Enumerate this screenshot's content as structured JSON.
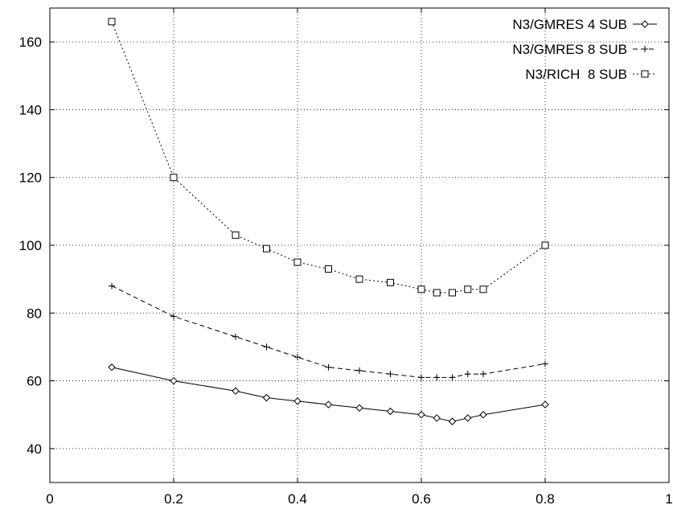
{
  "chart_data": {
    "type": "line",
    "title": "",
    "xlabel": "",
    "ylabel": "",
    "xlim": [
      0,
      1
    ],
    "ylim": [
      30,
      170
    ],
    "grid": true,
    "legend_position": "top-right",
    "x_ticks": [
      {
        "value": 0,
        "label": "0"
      },
      {
        "value": 0.2,
        "label": "0.2"
      },
      {
        "value": 0.4,
        "label": "0.4"
      },
      {
        "value": 0.6,
        "label": "0.6"
      },
      {
        "value": 0.8,
        "label": "0.8"
      },
      {
        "value": 1,
        "label": "1"
      }
    ],
    "y_ticks": [
      {
        "value": 40,
        "label": "40"
      },
      {
        "value": 60,
        "label": "60"
      },
      {
        "value": 80,
        "label": "80"
      },
      {
        "value": 100,
        "label": "100"
      },
      {
        "value": 120,
        "label": "120"
      },
      {
        "value": 140,
        "label": "140"
      },
      {
        "value": 160,
        "label": "160"
      }
    ],
    "series": [
      {
        "name": "N3/GMRES 4 SUB",
        "marker": "diamond",
        "line_style": "solid",
        "color": "#000000",
        "x": [
          0.1,
          0.2,
          0.3,
          0.35,
          0.4,
          0.45,
          0.5,
          0.55,
          0.6,
          0.625,
          0.65,
          0.675,
          0.7,
          0.8
        ],
        "y": [
          64,
          60,
          57,
          55,
          54,
          53,
          52,
          51,
          50,
          49,
          48,
          49,
          50,
          53
        ]
      },
      {
        "name": "N3/GMRES 8 SUB",
        "marker": "plus",
        "line_style": "dashed",
        "color": "#000000",
        "x": [
          0.1,
          0.2,
          0.3,
          0.35,
          0.4,
          0.45,
          0.5,
          0.55,
          0.6,
          0.625,
          0.65,
          0.675,
          0.7,
          0.8
        ],
        "y": [
          88,
          79,
          73,
          70,
          67,
          64,
          63,
          62,
          61,
          61,
          61,
          62,
          62,
          65
        ]
      },
      {
        "name": "N3/RICH  8 SUB",
        "marker": "square",
        "line_style": "dotted",
        "color": "#000000",
        "x": [
          0.1,
          0.2,
          0.3,
          0.35,
          0.4,
          0.45,
          0.5,
          0.55,
          0.6,
          0.625,
          0.65,
          0.675,
          0.7,
          0.8
        ],
        "y": [
          166,
          120,
          103,
          99,
          95,
          93,
          90,
          89,
          87,
          86,
          86,
          87,
          87,
          100
        ]
      }
    ]
  }
}
